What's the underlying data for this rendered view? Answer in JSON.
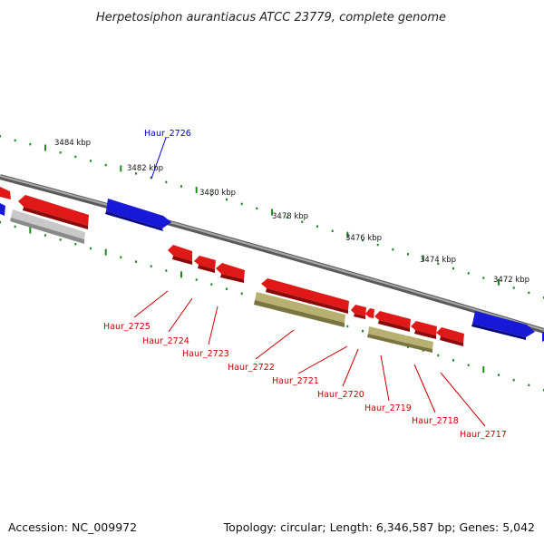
{
  "title": "Herpetosiphon aurantiacus ATCC 23779, complete genome",
  "footer": {
    "accession": "Accession: NC_009972",
    "summary": "Topology: circular; Length: 6,346,587 bp; Genes: 5,042"
  },
  "colors": {
    "forward_gene": "#2020e0",
    "reverse_gene": "#e01818",
    "rna_feature": "#b8b070",
    "pseudo_feature": "#c0c0c0",
    "backbone": "#808080",
    "tick": "#228822",
    "reverse_label": "#cc0000",
    "forward_label": "#0000cc"
  },
  "scale": {
    "labels": [
      "3484 kbp",
      "3482 kbp",
      "3480 kbp",
      "3478 kbp",
      "3476 kbp",
      "3474 kbp",
      "3472 kbp"
    ]
  },
  "gene_labels": {
    "forward": [
      "Haur_2726"
    ],
    "reverse": [
      "Haur_2725",
      "Haur_2724",
      "Haur_2723",
      "Haur_2722",
      "Haur_2721",
      "Haur_2720",
      "Haur_2719",
      "Haur_2718",
      "Haur_2717"
    ]
  }
}
